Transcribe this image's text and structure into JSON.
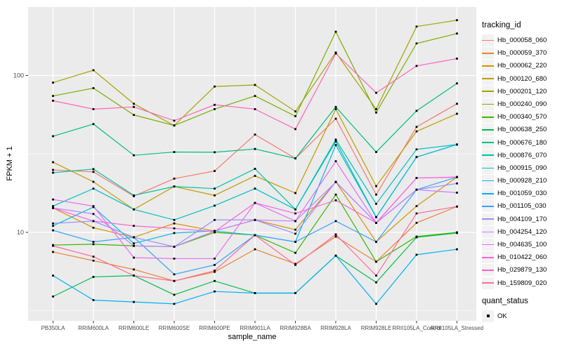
{
  "panel": {
    "bg_color": "#EBEBEB",
    "grid_color": "#FFFFFF",
    "tick_color": "#333333",
    "tick_label_color": "#4D4D4D",
    "point_color": "#000000"
  },
  "chart_data": {
    "type": "line",
    "title": "",
    "xlabel": "sample_name",
    "ylabel": "FPKM + 1",
    "y_scale": "log10",
    "ylim": [
      2.73,
      273
    ],
    "y_ticks": [
      10,
      100
    ],
    "y_minor_ticks": [
      3.162,
      31.623
    ],
    "grid": true,
    "legend_position": "right",
    "legend_title": "tracking_id",
    "legend2_title": "quant_status",
    "legend2_items": [
      {
        "label": "OK"
      }
    ],
    "x_categories": [
      "PB350LA",
      "RRIM600LA",
      "RRIM600LE",
      "RRIM600SE",
      "RRIM600PE",
      "RRIM901LA",
      "RRIM928BA",
      "RRIM928LA",
      "RRIM928LE",
      "RRII105LA_Control",
      "RRII105LA_Stressed"
    ],
    "series": [
      {
        "name": "Hb_000058_060",
        "color": "#F8766D",
        "values": [
          25,
          24.3,
          17,
          22,
          24.6,
          42,
          29.6,
          53,
          17.4,
          47,
          66
        ]
      },
      {
        "name": "Hb_000059_370",
        "color": "#EA8331",
        "values": [
          7.5,
          6.6,
          5.8,
          4.9,
          5.6,
          7.8,
          6.3,
          9.4,
          6.5,
          11.5,
          14.6
        ]
      },
      {
        "name": "Hb_000062_220",
        "color": "#D89000",
        "values": [
          14.3,
          10.7,
          9.3,
          11.4,
          10.2,
          12,
          10.4,
          21,
          8.7,
          14.7,
          22.5
        ]
      },
      {
        "name": "Hb_000120_680",
        "color": "#C09B00",
        "values": [
          28,
          21,
          14,
          19.6,
          17.2,
          22.9,
          17.8,
          61,
          19.7,
          44,
          57
        ]
      },
      {
        "name": "Hb_000201_120",
        "color": "#A3A500",
        "values": [
          90,
          108,
          66,
          48,
          85,
          87,
          59,
          140,
          61,
          205,
          225
        ]
      },
      {
        "name": "Hb_000240_090",
        "color": "#7CAE00",
        "values": [
          74,
          83,
          56,
          48,
          61,
          74,
          55,
          190,
          58,
          160,
          185
        ]
      },
      {
        "name": "Hb_000340_570",
        "color": "#39B600",
        "values": [
          8.3,
          8.4,
          8.2,
          8.1,
          10,
          9.6,
          7.4,
          17.4,
          6.5,
          9.4,
          10
        ]
      },
      {
        "name": "Hb_000638_250",
        "color": "#00BB4E",
        "values": [
          3.9,
          5.2,
          5.3,
          4.0,
          4.9,
          4.1,
          4.1,
          7.1,
          4.8,
          9.3,
          9.9
        ]
      },
      {
        "name": "Hb_000676_180",
        "color": "#00BF7D",
        "values": [
          41,
          49,
          31,
          32.5,
          32.4,
          34,
          29.6,
          63,
          32.5,
          59.5,
          89
        ]
      },
      {
        "name": "Hb_000876_070",
        "color": "#00C1A3",
        "values": [
          24,
          25.3,
          17.2,
          19.6,
          19,
          25.4,
          14,
          38,
          12.5,
          30.2,
          36.3
        ]
      },
      {
        "name": "Hb_000915_090",
        "color": "#00BFC4",
        "values": [
          14.7,
          19,
          14,
          12,
          14.8,
          19,
          14,
          39,
          15.2,
          33.8,
          36.3
        ]
      },
      {
        "name": "Hb_000928_210",
        "color": "#00BAE0",
        "values": [
          11,
          14.5,
          8.5,
          9.9,
          10.2,
          9.6,
          8.7,
          36,
          12.5,
          30.2,
          36.3
        ]
      },
      {
        "name": "Hb_001059_030",
        "color": "#00B0F6",
        "values": [
          5.3,
          3.7,
          3.6,
          3.5,
          4.2,
          4.1,
          4.1,
          7.1,
          3.5,
          7.2,
          7.8
        ]
      },
      {
        "name": "Hb_001105_030",
        "color": "#35A2FF",
        "values": [
          10.3,
          8.7,
          9.3,
          5.4,
          6.2,
          9.6,
          8.7,
          11.8,
          8.7,
          18.7,
          22.5
        ]
      },
      {
        "name": "Hb_004109_170",
        "color": "#9590FF",
        "values": [
          11.4,
          11.8,
          9.3,
          8.1,
          12,
          12,
          9.8,
          21,
          11.5,
          18.7,
          20.5
        ]
      },
      {
        "name": "Hb_004254_120",
        "color": "#C77CFF",
        "values": [
          14.3,
          13.1,
          8.2,
          8.1,
          10.2,
          12,
          11.8,
          20.9,
          11.5,
          18.7,
          17.9
        ]
      },
      {
        "name": "Hb_004635_100",
        "color": "#E76BF3",
        "values": [
          16.2,
          14.7,
          6.9,
          6.8,
          6.8,
          15.4,
          11.8,
          28.4,
          11.5,
          22.2,
          22.5
        ]
      },
      {
        "name": "Hb_010422_060",
        "color": "#FA62DB",
        "values": [
          14.3,
          11.8,
          11,
          10.6,
          10.1,
          15.4,
          13.2,
          16,
          11.5,
          22.2,
          22.5
        ]
      },
      {
        "name": "Hb_029879_130",
        "color": "#FF62BC",
        "values": [
          69,
          61,
          63,
          51.5,
          65,
          61,
          45.5,
          138,
          77.5,
          115,
          128
        ]
      },
      {
        "name": "Hb_159809_020",
        "color": "#FF6A98",
        "values": [
          8.2,
          7.0,
          5.3,
          4.9,
          5.7,
          9.6,
          6.2,
          9.7,
          5.3,
          13.2,
          14.6
        ]
      }
    ]
  }
}
